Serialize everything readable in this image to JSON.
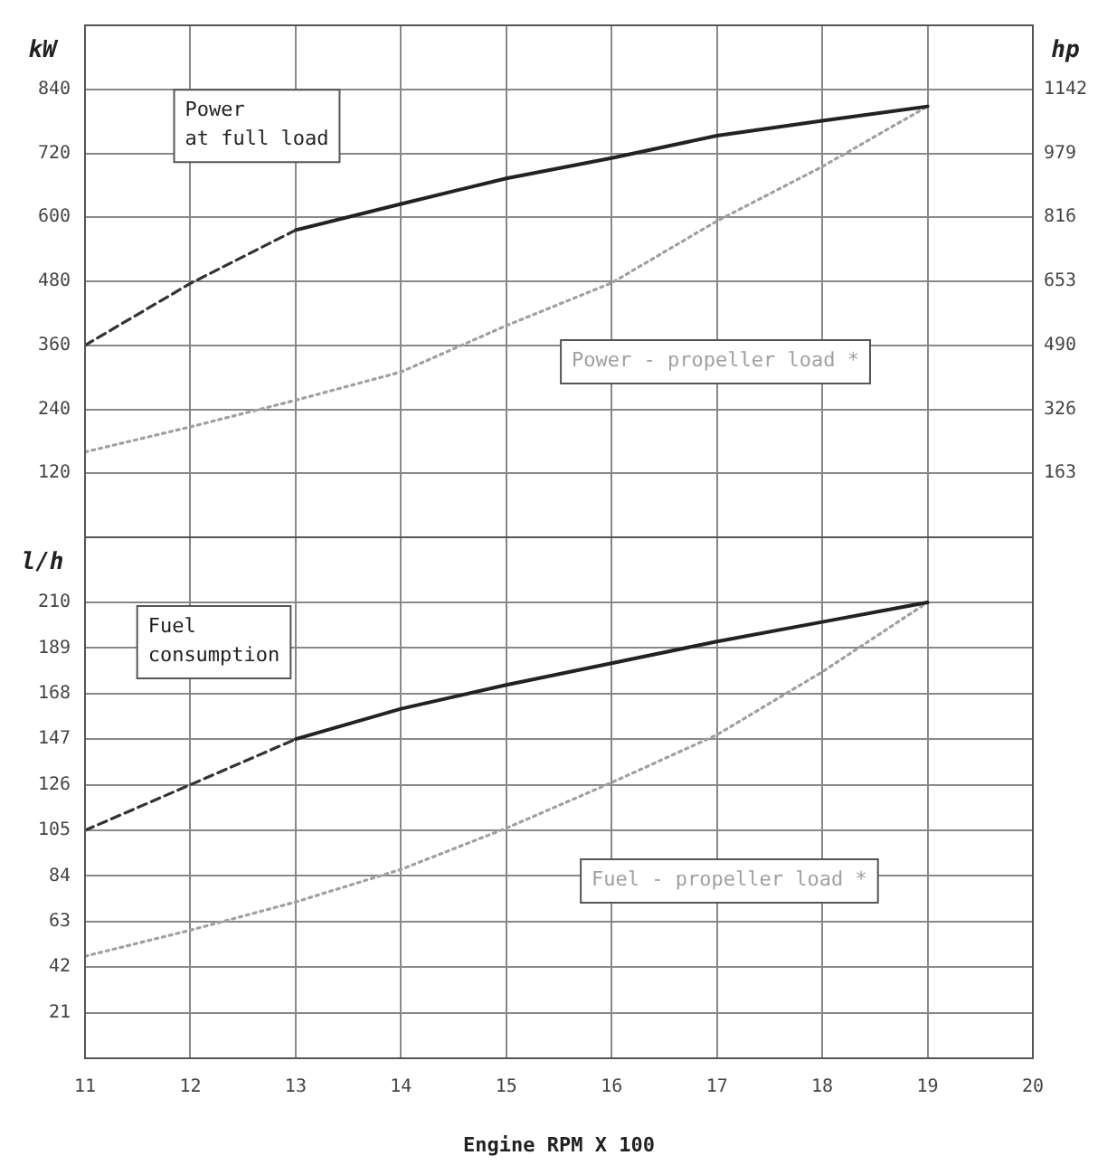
{
  "chart_data": [
    {
      "type": "line",
      "ylabel": "kW",
      "y2label": "hp",
      "xlim": [
        11,
        20
      ],
      "xticks": [
        11,
        12,
        13,
        14,
        15,
        16,
        17,
        18,
        19,
        20
      ],
      "ylim": [
        0,
        960
      ],
      "yticks": [
        120,
        240,
        360,
        480,
        600,
        720,
        840
      ],
      "y2lim": [
        0,
        1305
      ],
      "y2ticks": [
        163,
        326,
        490,
        653,
        816,
        979,
        1142
      ],
      "tick_labels": "y",
      "grid": true,
      "legend": false,
      "marker": "none",
      "series": [
        {
          "color": "#333333",
          "line_style": "dashed",
          "x": [
            11,
            12,
            13
          ],
          "values": [
            360,
            476,
            576
          ]
        },
        {
          "name": "Power\nat full load",
          "color": "#222222",
          "line_style": "solid",
          "x": [
            13,
            14,
            15,
            16,
            17,
            18,
            19
          ],
          "values": [
            576,
            625,
            673,
            711,
            753,
            781,
            808
          ]
        },
        {
          "name": "Power - propeller load *",
          "color": "#a0a0a0",
          "line_style": "dotted",
          "x": [
            11,
            12,
            13,
            14,
            15,
            16,
            17,
            18,
            19
          ],
          "values": [
            160,
            207,
            257,
            310,
            397,
            477,
            593,
            695,
            808
          ]
        }
      ]
    },
    {
      "type": "line",
      "ylabel": "l/h",
      "xlabel": "Engine RPM X 100",
      "xlim": [
        11,
        20
      ],
      "xticks": [
        11,
        12,
        13,
        14,
        15,
        16,
        17,
        18,
        19,
        20
      ],
      "ylim": [
        0,
        240
      ],
      "yticks": [
        21,
        42,
        63,
        84,
        105,
        126,
        147,
        168,
        189,
        210
      ],
      "grid": true,
      "legend": false,
      "marker": "none",
      "series": [
        {
          "color": "#333333",
          "line_style": "dashed",
          "x": [
            11,
            12,
            13
          ],
          "values": [
            105,
            126,
            147
          ]
        },
        {
          "name": "Fuel\nconsumption",
          "color": "#222222",
          "line_style": "solid",
          "x": [
            13,
            14,
            15,
            16,
            17,
            18,
            19
          ],
          "values": [
            147,
            161,
            172,
            182,
            192,
            201,
            210
          ]
        },
        {
          "name": "Fuel - propeller load *",
          "color": "#a0a0a0",
          "line_style": "dotted",
          "x": [
            11,
            12,
            13,
            14,
            15,
            16,
            17,
            18,
            19
          ],
          "values": [
            47,
            59,
            72,
            87,
            106,
            127,
            149,
            178,
            210
          ]
        }
      ]
    }
  ]
}
